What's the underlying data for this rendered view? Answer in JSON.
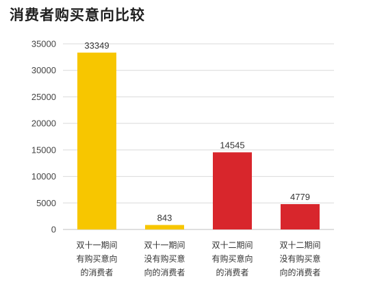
{
  "chart_data": {
    "type": "bar",
    "title": "消费者购买意向比较",
    "xlabel": "",
    "ylabel": "",
    "ylim": [
      0,
      35000
    ],
    "yticks": [
      0,
      5000,
      10000,
      15000,
      20000,
      25000,
      30000,
      35000
    ],
    "grid": true,
    "legend": "none",
    "categories": [
      [
        "双十一期间",
        "有购买意向",
        "的消费者"
      ],
      [
        "双十一期间",
        "没有购买意",
        "向的消费者"
      ],
      [
        "双十二期间",
        "有购买意向",
        "的消费者"
      ],
      [
        "双十二期间",
        "没有购买意",
        "向的消费者"
      ]
    ],
    "values": [
      33349,
      843,
      14545,
      4779
    ],
    "data_labels": [
      "33349",
      "843",
      "14545",
      "4779"
    ],
    "bar_colors": [
      "#f7c600",
      "#f7c600",
      "#d8262c",
      "#d8262c"
    ],
    "colors": {
      "grid": "#d9d9d9",
      "axis": "#bfbfbf"
    }
  }
}
